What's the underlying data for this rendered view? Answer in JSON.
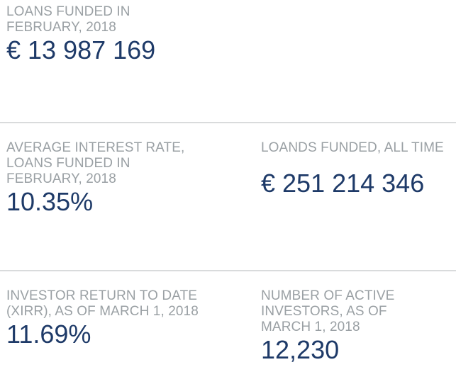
{
  "theme": {
    "background": "#ffffff",
    "label_color": "#9aa0a4",
    "value_color": "#1e3a68",
    "divider_color": "#d9dbdc"
  },
  "stats": {
    "loans_funded_february": {
      "label": "LOANS FUNDED IN\nFEBRUARY, 2018",
      "value": "€ 13 987 169"
    },
    "average_interest_rate": {
      "label": "AVERAGE INTEREST RATE,\nLOANS FUNDED IN\nFEBRUARY, 2018",
      "value": "10.35%"
    },
    "loans_funded_all_time": {
      "label": "LOANDS FUNDED, ALL TIME",
      "value": "€ 251 214 346"
    },
    "investor_return_xirr": {
      "label": "INVESTOR RETURN TO DATE\n(XIRR), AS OF MARCH 1, 2018",
      "value": "11.69%"
    },
    "active_investors": {
      "label": "NUMBER OF ACTIVE\nINVESTORS, AS OF\nMARCH 1, 2018",
      "value": "12,230"
    }
  }
}
